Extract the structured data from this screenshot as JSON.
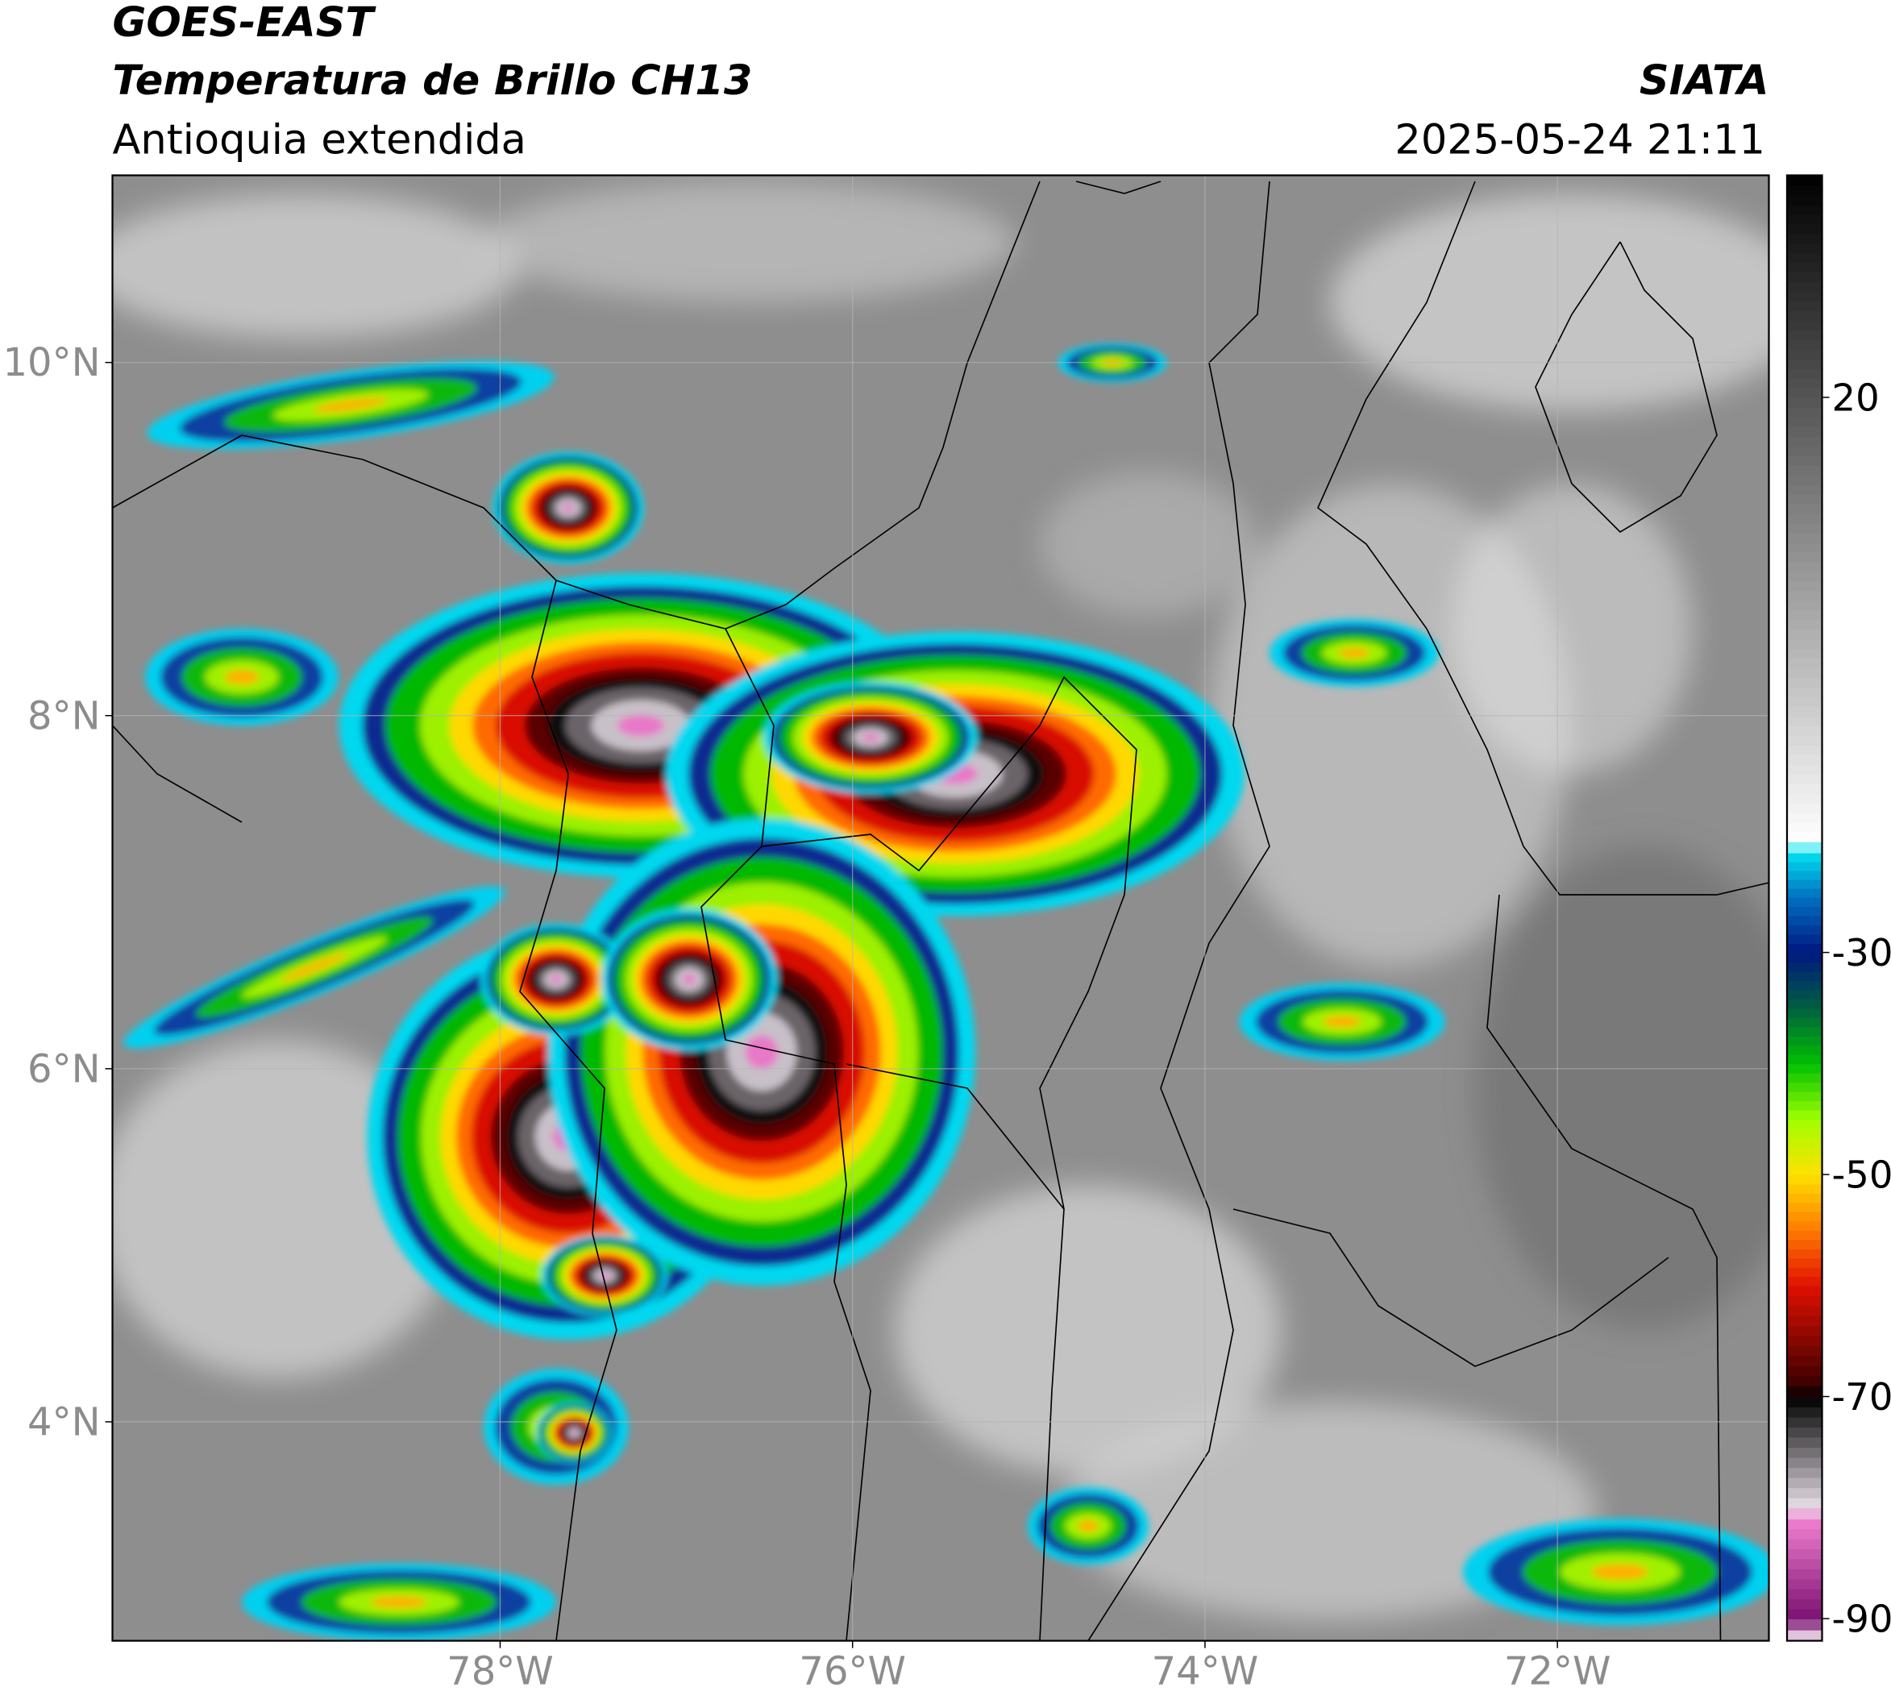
{
  "header": {
    "title": "GOES-EAST",
    "subtitle": "Temperatura de Brillo CH13",
    "region": "Antioquia extendida",
    "source": "SIATA",
    "datetime": "2025-05-24 21:11"
  },
  "map": {
    "xlim": [
      -80.2,
      -70.8
    ],
    "ylim": [
      2.76,
      11.06
    ],
    "grid": true,
    "xticks": [
      {
        "value": -78,
        "label": "78°W"
      },
      {
        "value": -76,
        "label": "76°W"
      },
      {
        "value": -74,
        "label": "74°W"
      },
      {
        "value": -72,
        "label": "72°W"
      }
    ],
    "yticks": [
      {
        "value": 10,
        "label": "10°N"
      },
      {
        "value": 8,
        "label": "8°N"
      },
      {
        "value": 6,
        "label": "6°N"
      },
      {
        "value": 4,
        "label": "4°N"
      }
    ]
  },
  "colorbar": {
    "clim": [
      -92,
      40
    ],
    "ticks": [
      20,
      -30,
      -50,
      -70,
      -90
    ],
    "colormap": [
      {
        "value": -92,
        "color": "#ffffff"
      },
      {
        "value": -90,
        "color": "#7a1070"
      },
      {
        "value": -81,
        "color": "#f080d0"
      },
      {
        "value": -80,
        "color": "#e8e0e8"
      },
      {
        "value": -70,
        "color": "#000000"
      },
      {
        "value": -69,
        "color": "#3a0000"
      },
      {
        "value": -60,
        "color": "#e01000"
      },
      {
        "value": -55,
        "color": "#ff7a00"
      },
      {
        "value": -50,
        "color": "#ffe000"
      },
      {
        "value": -45,
        "color": "#a0ff00"
      },
      {
        "value": -40,
        "color": "#00c000"
      },
      {
        "value": -35,
        "color": "#006040"
      },
      {
        "value": -30,
        "color": "#001880"
      },
      {
        "value": -25,
        "color": "#0070c0"
      },
      {
        "value": -21,
        "color": "#00e0f0"
      },
      {
        "value": -20,
        "color": "#ffffff"
      },
      {
        "value": 40,
        "color": "#000000"
      }
    ]
  }
}
